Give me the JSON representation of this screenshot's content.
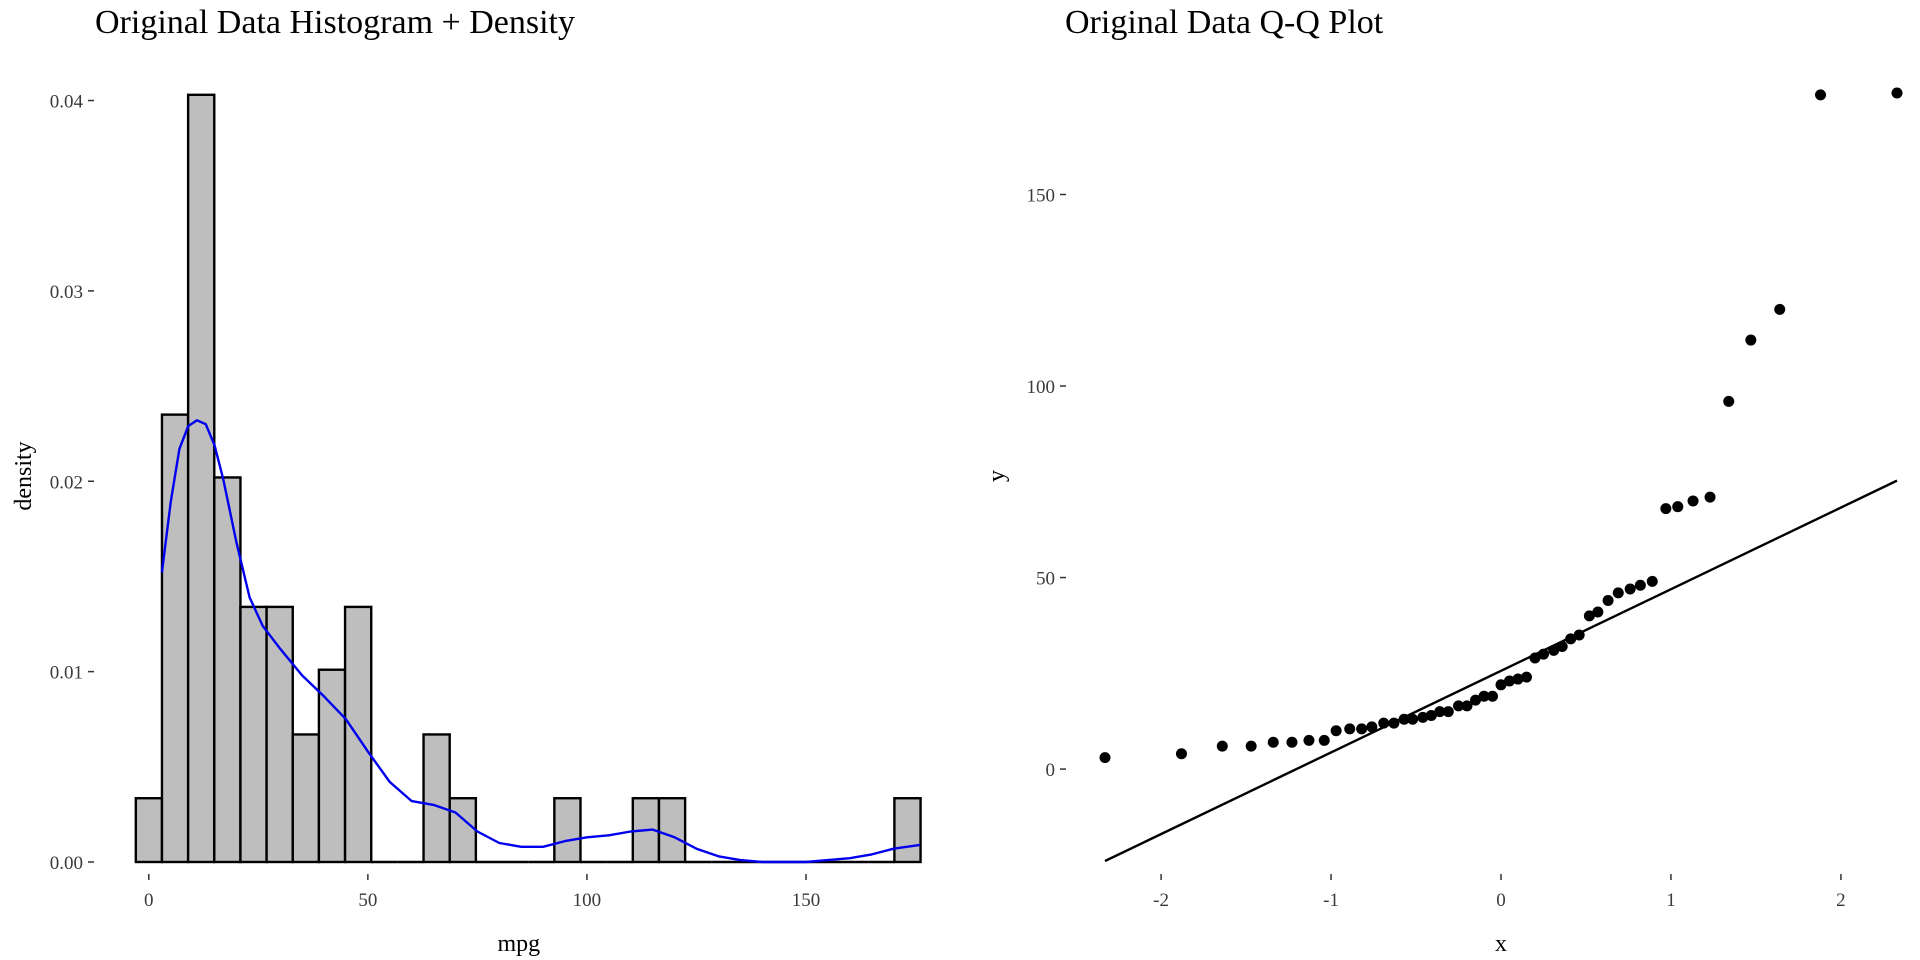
{
  "chart_data": [
    {
      "type": "bar",
      "subtype": "histogram-with-density",
      "title": "Original Data Histogram + Density",
      "xlabel": "mpg",
      "ylabel": "density",
      "xlim": [
        -3.6,
        176.7
      ],
      "ylim": [
        0,
        0.0405
      ],
      "x_ticks": [
        0,
        50,
        100,
        150
      ],
      "y_ticks": [
        0.0,
        0.01,
        0.02,
        0.03,
        0.04
      ],
      "y_tick_labels": [
        "0.00",
        "0.01",
        "0.02",
        "0.03",
        "0.04"
      ],
      "bin_width": 5.97,
      "bins": [
        {
          "start": -2.96,
          "end": 3.01,
          "density": 0.00335
        },
        {
          "start": 3.01,
          "end": 8.98,
          "density": 0.0235
        },
        {
          "start": 8.98,
          "end": 14.95,
          "density": 0.0403
        },
        {
          "start": 14.95,
          "end": 20.92,
          "density": 0.0202
        },
        {
          "start": 20.92,
          "end": 26.89,
          "density": 0.0134
        },
        {
          "start": 26.89,
          "end": 32.86,
          "density": 0.0134
        },
        {
          "start": 32.86,
          "end": 38.83,
          "density": 0.0067
        },
        {
          "start": 38.83,
          "end": 44.8,
          "density": 0.0101
        },
        {
          "start": 44.8,
          "end": 50.77,
          "density": 0.0134
        },
        {
          "start": 50.77,
          "end": 56.74,
          "density": 0
        },
        {
          "start": 56.74,
          "end": 62.71,
          "density": 0
        },
        {
          "start": 62.71,
          "end": 68.68,
          "density": 0.0067
        },
        {
          "start": 68.68,
          "end": 74.65,
          "density": 0.00335
        },
        {
          "start": 74.65,
          "end": 80.62,
          "density": 0
        },
        {
          "start": 80.62,
          "end": 86.59,
          "density": 0
        },
        {
          "start": 86.59,
          "end": 92.56,
          "density": 0
        },
        {
          "start": 92.56,
          "end": 98.53,
          "density": 0.00335
        },
        {
          "start": 98.53,
          "end": 104.5,
          "density": 0
        },
        {
          "start": 104.5,
          "end": 110.47,
          "density": 0
        },
        {
          "start": 110.47,
          "end": 116.44,
          "density": 0.00335
        },
        {
          "start": 116.44,
          "end": 122.41,
          "density": 0.00335
        },
        {
          "start": 122.41,
          "end": 128.38,
          "density": 0
        },
        {
          "start": 128.38,
          "end": 134.35,
          "density": 0
        },
        {
          "start": 134.35,
          "end": 140.32,
          "density": 0
        },
        {
          "start": 140.32,
          "end": 146.29,
          "density": 0
        },
        {
          "start": 146.29,
          "end": 152.26,
          "density": 0
        },
        {
          "start": 152.26,
          "end": 158.23,
          "density": 0
        },
        {
          "start": 158.23,
          "end": 164.2,
          "density": 0
        },
        {
          "start": 164.2,
          "end": 170.17,
          "density": 0
        },
        {
          "start": 170.17,
          "end": 176.14,
          "density": 0.00335
        }
      ],
      "density_curve": {
        "color": "#0000ee",
        "x": [
          3,
          5,
          7,
          9,
          11,
          13,
          15,
          17,
          20,
          23,
          26,
          30,
          35,
          40,
          45,
          50,
          55,
          60,
          65,
          70,
          75,
          80,
          85,
          90,
          95,
          100,
          105,
          110,
          115,
          120,
          125,
          130,
          135,
          140,
          145,
          150,
          155,
          160,
          165,
          170,
          176
        ],
        "y": [
          0.0152,
          0.0189,
          0.0217,
          0.0229,
          0.0232,
          0.023,
          0.0219,
          0.0201,
          0.0168,
          0.0139,
          0.0124,
          0.0112,
          0.0098,
          0.0087,
          0.0075,
          0.0058,
          0.0042,
          0.0032,
          0.003,
          0.0026,
          0.0016,
          0.001,
          0.0008,
          0.0008,
          0.0011,
          0.0013,
          0.0014,
          0.0016,
          0.0017,
          0.0013,
          0.0007,
          0.0003,
          0.0001,
          0.0,
          0.0,
          0.0,
          0.0001,
          0.0002,
          0.0004,
          0.0007,
          0.0009
        ]
      },
      "bar_fill": "#bebebe",
      "bar_stroke": "#000000"
    },
    {
      "type": "scatter",
      "subtype": "qq-plot",
      "title": "Original Data Q-Q Plot",
      "xlabel": "x",
      "ylabel": "y",
      "xlim": [
        -2.33,
        2.33
      ],
      "ylim": [
        -24,
        176.5
      ],
      "x_ticks": [
        -2,
        -1,
        0,
        1,
        2
      ],
      "y_ticks": [
        0,
        50,
        100,
        150
      ],
      "reference_line": {
        "x": [
          -2.33,
          2.33
        ],
        "y": [
          -24,
          75.3
        ]
      },
      "points": {
        "x": [
          -2.33,
          -1.88,
          -1.64,
          -1.47,
          -1.34,
          -1.23,
          -1.13,
          -1.04,
          -0.97,
          -0.89,
          -0.82,
          -0.76,
          -0.69,
          -0.63,
          -0.57,
          -0.52,
          -0.46,
          -0.41,
          -0.36,
          -0.31,
          -0.25,
          -0.2,
          -0.15,
          -0.1,
          -0.05,
          0.0,
          0.05,
          0.1,
          0.15,
          0.2,
          0.25,
          0.31,
          0.36,
          0.41,
          0.46,
          0.52,
          0.57,
          0.63,
          0.69,
          0.76,
          0.82,
          0.89,
          0.97,
          1.04,
          1.13,
          1.23,
          1.34,
          1.47,
          1.64,
          1.88,
          2.33
        ],
        "y": [
          3,
          4,
          6,
          6,
          7,
          7,
          7.5,
          7.5,
          10,
          10.5,
          10.5,
          11,
          12,
          12,
          13,
          13,
          13.5,
          14,
          15,
          15,
          16.5,
          16.5,
          18,
          19,
          19,
          22,
          23,
          23.5,
          24,
          29,
          30,
          31,
          32,
          34,
          35,
          40,
          41,
          44,
          46,
          47,
          48,
          49,
          68,
          68.5,
          70,
          71,
          96,
          112,
          120,
          176,
          176.5
        ]
      },
      "point_color": "#000000"
    }
  ]
}
